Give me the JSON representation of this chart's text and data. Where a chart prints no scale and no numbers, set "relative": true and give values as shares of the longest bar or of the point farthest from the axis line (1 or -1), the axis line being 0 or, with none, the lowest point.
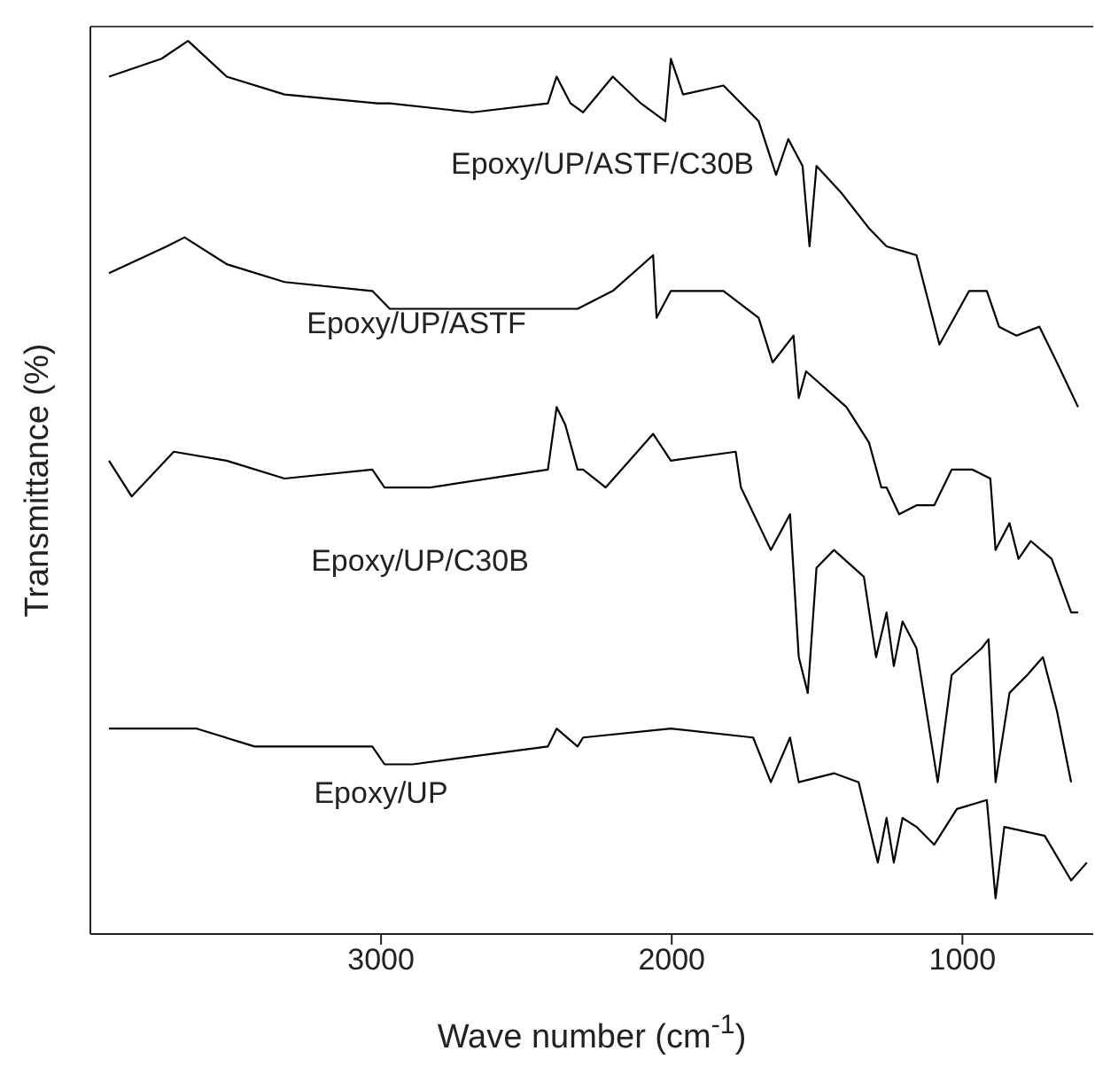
{
  "chart_data": {
    "type": "line",
    "xlabel": "Wave number (cm$^{-1}$)",
    "ylabel": "Transmittance (%)",
    "relative": true,
    "xlim": [
      4000,
      550
    ],
    "xticks": [
      3000,
      2000,
      1000
    ],
    "grid": false,
    "marker": "none",
    "line_style": "solid",
    "series": [
      {
        "name": "Epoxy/UP/ASTF/C30B",
        "color": "#000000",
        "x": [
          3936,
          3755,
          3664,
          3531,
          3332,
          3012,
          2970,
          2686,
          2426,
          2396,
          2348,
          2305,
          2203,
          2106,
          2022,
          2003,
          1961,
          1822,
          1701,
          1641,
          1599,
          1550,
          1526,
          1502,
          1417,
          1321,
          1261,
          1158,
          1079,
          977,
          916,
          874,
          814,
          735,
          675,
          602
        ],
        "values": [
          0.96,
          0.98,
          1.0,
          0.96,
          0.94,
          0.93,
          0.93,
          0.92,
          0.93,
          0.96,
          0.93,
          0.92,
          0.96,
          0.93,
          0.91,
          0.98,
          0.94,
          0.95,
          0.91,
          0.85,
          0.89,
          0.86,
          0.77,
          0.86,
          0.83,
          0.79,
          0.77,
          0.76,
          0.66,
          0.72,
          0.72,
          0.68,
          0.67,
          0.68,
          0.64,
          0.59
        ]
      },
      {
        "name": "Epoxy/UP/ASTF",
        "color": "#000000",
        "x": [
          3936,
          3737,
          3676,
          3531,
          3332,
          3030,
          2970,
          2686,
          2324,
          2203,
          2064,
          2052,
          2003,
          1822,
          1701,
          1653,
          1581,
          1563,
          1538,
          1399,
          1321,
          1279,
          1261,
          1218,
          1158,
          1097,
          1037,
          965,
          904,
          886,
          838,
          807,
          765,
          693,
          626,
          602
        ],
        "values": [
          0.74,
          0.77,
          0.78,
          0.75,
          0.73,
          0.72,
          0.7,
          0.7,
          0.7,
          0.72,
          0.76,
          0.69,
          0.72,
          0.72,
          0.69,
          0.64,
          0.67,
          0.6,
          0.63,
          0.59,
          0.55,
          0.5,
          0.5,
          0.47,
          0.48,
          0.48,
          0.52,
          0.52,
          0.51,
          0.43,
          0.46,
          0.42,
          0.44,
          0.42,
          0.36,
          0.36
        ]
      },
      {
        "name": "Epoxy/UP/C30B",
        "color": "#000000",
        "x": [
          3936,
          3858,
          3713,
          3531,
          3332,
          3030,
          2988,
          2897,
          2831,
          2426,
          2396,
          2366,
          2324,
          2305,
          2227,
          2064,
          2003,
          1780,
          1762,
          1659,
          1593,
          1563,
          1532,
          1502,
          1442,
          1339,
          1297,
          1261,
          1236,
          1206,
          1158,
          1085,
          1037,
          934,
          910,
          886,
          838,
          777,
          723,
          675,
          626
        ],
        "values": [
          0.53,
          0.49,
          0.54,
          0.53,
          0.51,
          0.52,
          0.5,
          0.5,
          0.5,
          0.52,
          0.59,
          0.57,
          0.52,
          0.52,
          0.5,
          0.56,
          0.53,
          0.54,
          0.5,
          0.43,
          0.47,
          0.31,
          0.27,
          0.41,
          0.43,
          0.4,
          0.31,
          0.36,
          0.3,
          0.35,
          0.32,
          0.17,
          0.29,
          0.32,
          0.33,
          0.17,
          0.27,
          0.29,
          0.31,
          0.25,
          0.17
        ]
      },
      {
        "name": "Epoxy/UP",
        "color": "#000000",
        "x": [
          3936,
          3737,
          3634,
          3435,
          3030,
          2988,
          2891,
          2426,
          2396,
          2324,
          2305,
          2003,
          1720,
          1659,
          1593,
          1563,
          1442,
          1357,
          1291,
          1261,
          1236,
          1206,
          1158,
          1097,
          1019,
          916,
          886,
          856,
          717,
          626,
          572
        ],
        "values": [
          0.23,
          0.23,
          0.23,
          0.21,
          0.21,
          0.19,
          0.19,
          0.21,
          0.23,
          0.21,
          0.22,
          0.23,
          0.22,
          0.17,
          0.22,
          0.17,
          0.18,
          0.17,
          0.08,
          0.13,
          0.08,
          0.13,
          0.12,
          0.1,
          0.14,
          0.15,
          0.04,
          0.12,
          0.11,
          0.06,
          0.08
        ]
      }
    ]
  }
}
